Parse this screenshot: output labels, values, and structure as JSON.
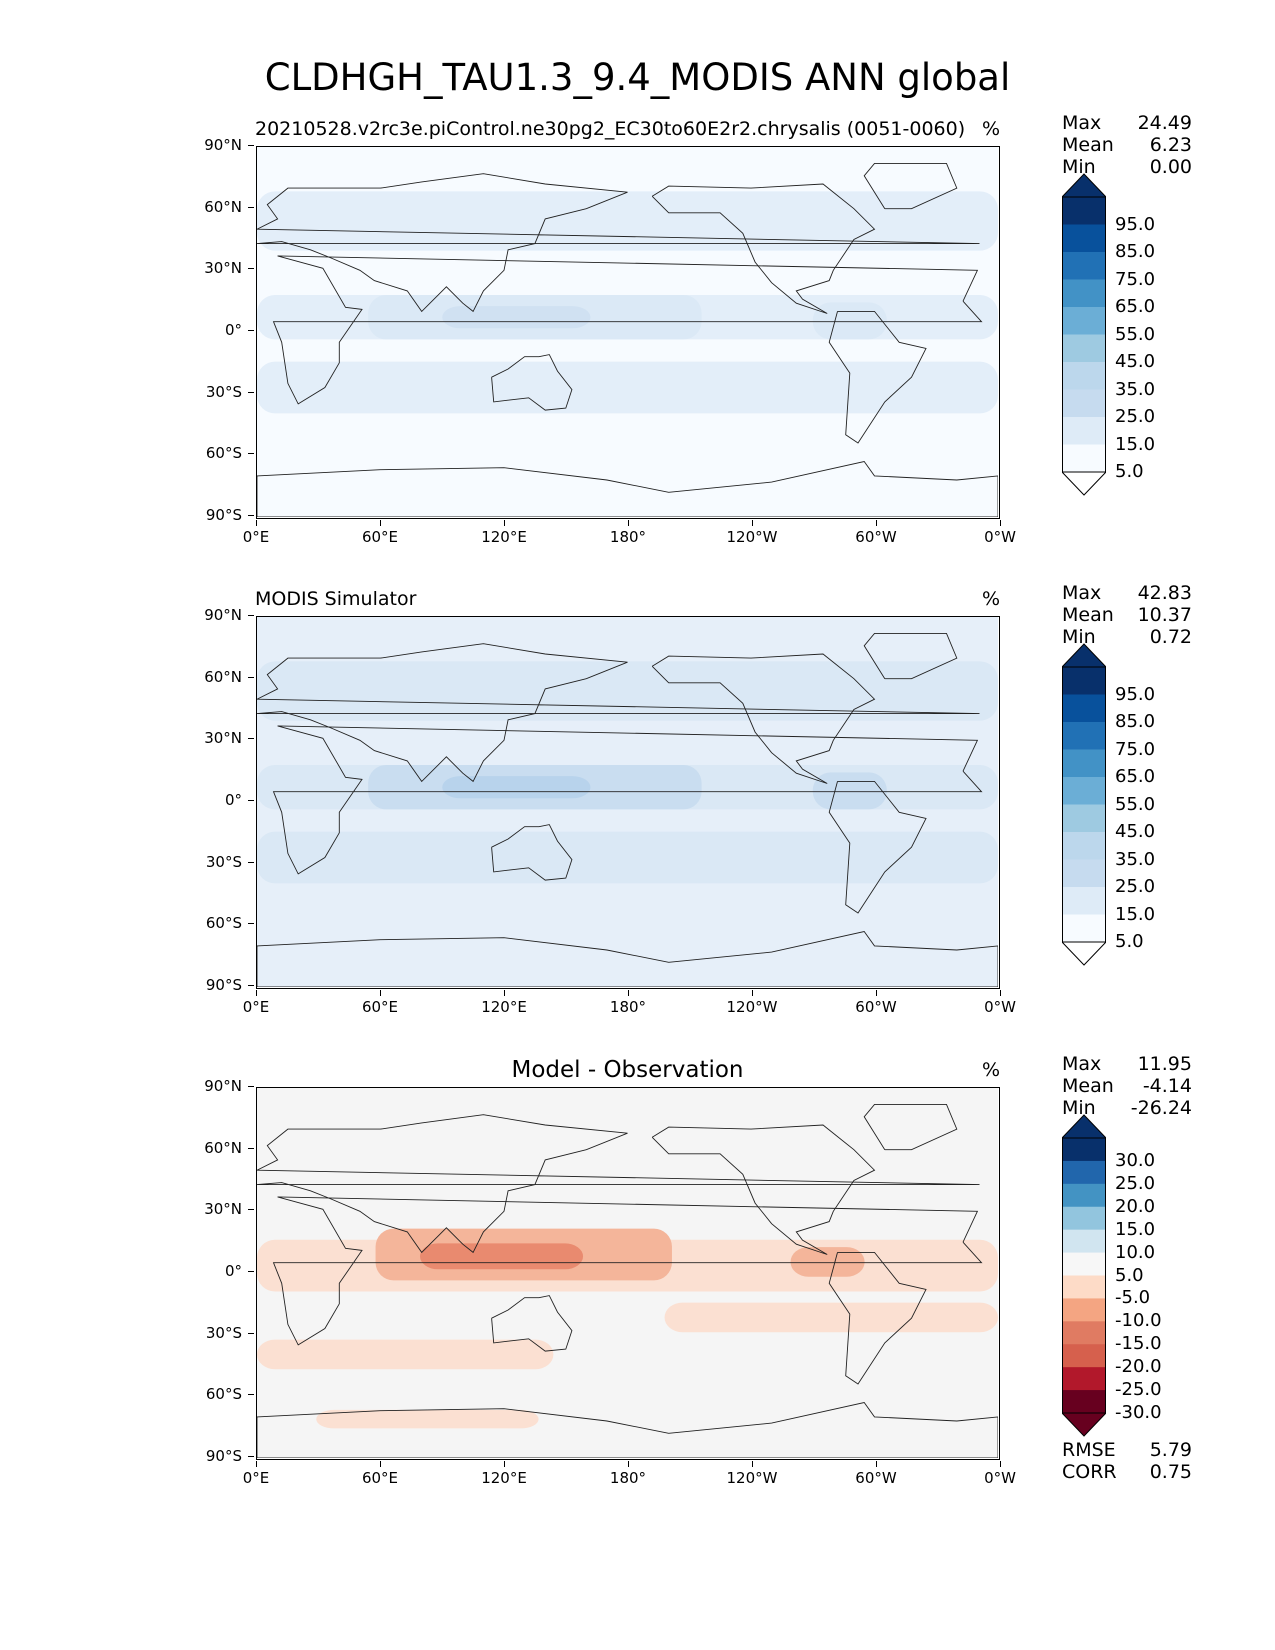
{
  "figure_title": "CLDHGH_TAU1.3_9.4_MODIS ANN global",
  "x_ticks": [
    "0°E",
    "60°E",
    "120°E",
    "180°",
    "120°W",
    "60°W",
    "0°W"
  ],
  "y_ticks": [
    "90°N",
    "60°N",
    "30°N",
    "0°",
    "30°S",
    "60°S",
    "90°S"
  ],
  "panels": [
    {
      "title": "20210528.v2rc3e.piControl.ne30pg2_EC30to60E2r2.chrysalis (0051-0060)",
      "title_style": "left",
      "units": "%",
      "stats": {
        "max_label": "Max",
        "max": "24.49",
        "mean_label": "Mean",
        "mean": "6.23",
        "min_label": "Min",
        "min": "0.00"
      },
      "colorbar": {
        "labels": [
          "95.0",
          "85.0",
          "75.0",
          "65.0",
          "55.0",
          "45.0",
          "35.0",
          "25.0",
          "15.0",
          "5.0"
        ],
        "colors": [
          "#08306b",
          "#08519c",
          "#2171b5",
          "#4292c6",
          "#6baed6",
          "#9ecae1",
          "#bcd7ec",
          "#c6dbef",
          "#deebf7",
          "#f7fbff"
        ],
        "top_color": "#08306b",
        "bottom_color": "#ffffff"
      },
      "field": {
        "base": "#f7fbff",
        "band": "#e3eef9",
        "tropic": "#dbe9f6",
        "strong": "#d0e1f2"
      }
    },
    {
      "title": "MODIS Simulator",
      "title_style": "left",
      "units": "%",
      "stats": {
        "max_label": "Max",
        "max": "42.83",
        "mean_label": "Mean",
        "mean": "10.37",
        "min_label": "Min",
        "min": "0.72"
      },
      "colorbar": {
        "labels": [
          "95.0",
          "85.0",
          "75.0",
          "65.0",
          "55.0",
          "45.0",
          "35.0",
          "25.0",
          "15.0",
          "5.0"
        ],
        "colors": [
          "#08306b",
          "#08519c",
          "#2171b5",
          "#4292c6",
          "#6baed6",
          "#9ecae1",
          "#bcd7ec",
          "#c6dbef",
          "#deebf7",
          "#f7fbff"
        ],
        "top_color": "#08306b",
        "bottom_color": "#ffffff"
      },
      "field": {
        "base": "#e6eff9",
        "band": "#dae8f5",
        "tropic": "#c9ddf0",
        "strong": "#b8d3ec"
      }
    },
    {
      "title": "Model - Observation",
      "title_style": "center",
      "units": "%",
      "stats": {
        "max_label": "Max",
        "max": "11.95",
        "mean_label": "Mean",
        "mean": "-4.14",
        "min_label": "Min",
        "min": "-26.24"
      },
      "colorbar": {
        "labels": [
          "30.0",
          "25.0",
          "20.0",
          "15.0",
          "10.0",
          "5.0",
          "-5.0",
          "-10.0",
          "-15.0",
          "-20.0",
          "-25.0",
          "-30.0"
        ],
        "colors": [
          "#08306b",
          "#2166ac",
          "#4393c3",
          "#92c5de",
          "#d1e5f0",
          "#f7f7f7",
          "#fddbc7",
          "#f4a582",
          "#e07b62",
          "#d6604d",
          "#b2182b",
          "#67001f"
        ],
        "top_color": "#08306b",
        "bottom_color": "#67001f"
      },
      "field": {
        "base": "#f5f5f5",
        "band": "#fbe0d2",
        "tropic": "#f4b59a",
        "strong": "#e98a6f"
      },
      "rmse_label": "RMSE",
      "rmse": "5.79",
      "corr_label": "CORR",
      "corr": "0.75"
    }
  ]
}
